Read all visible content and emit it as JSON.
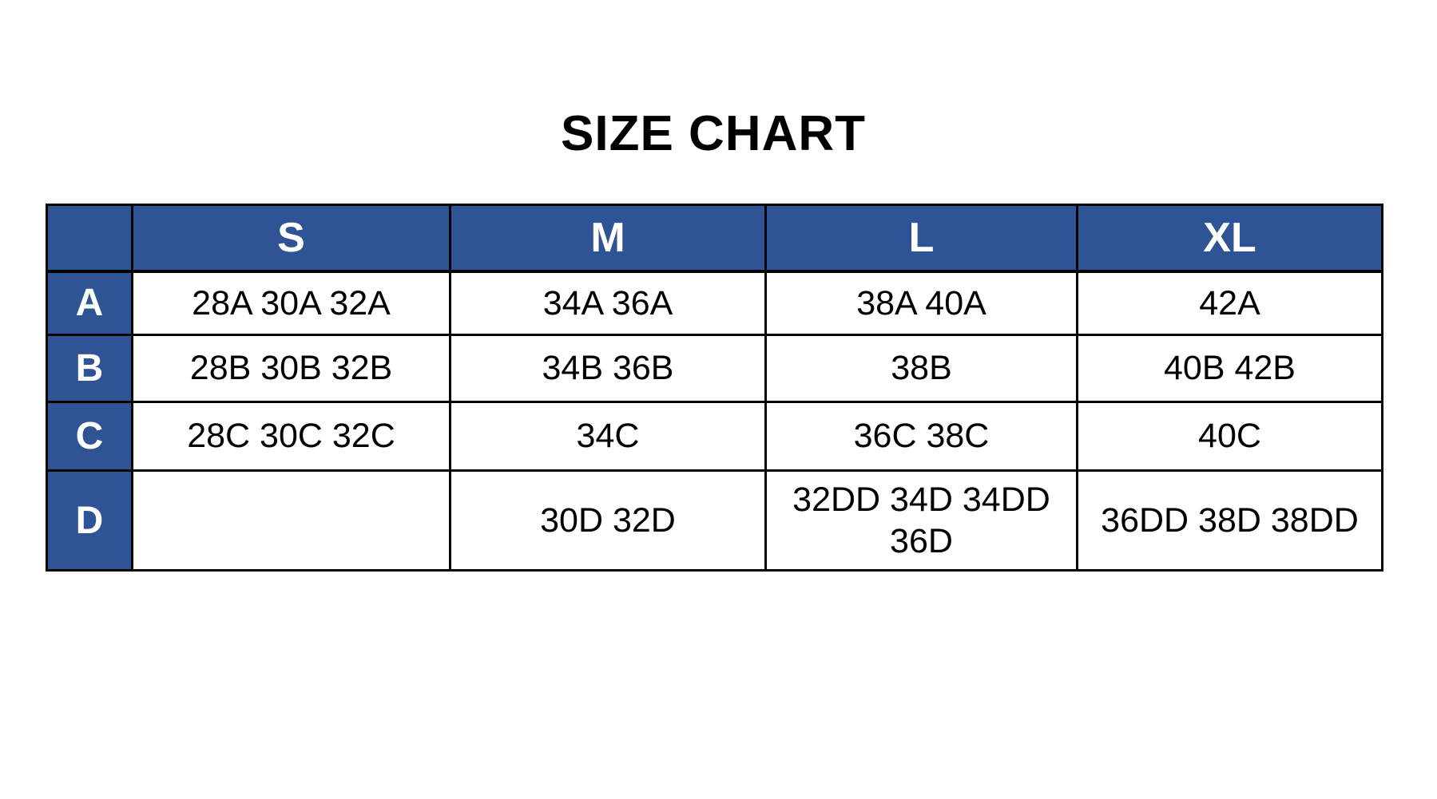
{
  "title": "SIZE CHART",
  "chart_data": {
    "type": "table",
    "title": "SIZE CHART",
    "columns": [
      "",
      "S",
      "M",
      "L",
      "XL"
    ],
    "rows": [
      {
        "label": "A",
        "cells": [
          "28A 30A 32A",
          "34A 36A",
          "38A 40A",
          "42A"
        ]
      },
      {
        "label": "B",
        "cells": [
          "28B 30B 32B",
          "34B 36B",
          "38B",
          "40B 42B"
        ]
      },
      {
        "label": "C",
        "cells": [
          "28C 30C 32C",
          "34C",
          "36C 38C",
          "40C"
        ]
      },
      {
        "label": "D",
        "cells": [
          "",
          "30D 32D",
          "32DD 34D 34DD\n36D",
          "36DD 38D 38DD"
        ]
      }
    ]
  },
  "colors": {
    "header_bg": "#2F5496",
    "header_text": "#FFFFFF",
    "cell_bg": "#FFFFFF",
    "cell_text": "#000000",
    "border": "#000000",
    "page_bg": "#FFFFFF"
  }
}
